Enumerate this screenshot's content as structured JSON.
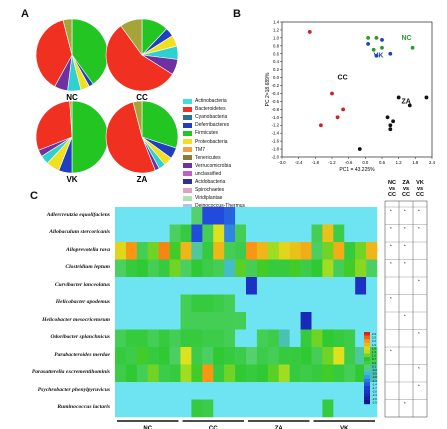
{
  "panels": {
    "a": "A",
    "b": "B",
    "c": "C"
  },
  "pies": [
    {
      "id": "NC",
      "label": "NC",
      "slices": [
        0.4,
        0.02,
        0.04,
        0.06,
        0.06,
        0.38,
        0.04
      ]
    },
    {
      "id": "CC",
      "label": "CC",
      "slices": [
        0.12,
        0.04,
        0.05,
        0.06,
        0.07,
        0.56,
        0.1
      ]
    },
    {
      "id": "VK",
      "label": "VK",
      "slices": [
        0.5,
        0.06,
        0.06,
        0.04,
        0.03,
        0.3,
        0.01
      ]
    },
    {
      "id": "ZA",
      "label": "ZA",
      "slices": [
        0.3,
        0.05,
        0.04,
        0.03,
        0.02,
        0.52,
        0.04
      ]
    }
  ],
  "pie_colors": [
    "#22c522",
    "#1f3fbf",
    "#f0e020",
    "#2fd0d0",
    "#7030a0",
    "#f03020",
    "#a4a43a"
  ],
  "legend": {
    "items": [
      {
        "label": "Actinobacteria",
        "color": "#40e0e0"
      },
      {
        "label": "Bacteroidetes",
        "color": "#f03020"
      },
      {
        "label": "Cyanobacteria",
        "color": "#2f6f8f"
      },
      {
        "label": "Deferribacteres",
        "color": "#1f3fbf"
      },
      {
        "label": "Firmicutes",
        "color": "#22c522"
      },
      {
        "label": "Proteobacteria",
        "color": "#f0e020"
      },
      {
        "label": "TM7",
        "color": "#f0a040"
      },
      {
        "label": "Tenericutes",
        "color": "#8c7a3a"
      },
      {
        "label": "Verrucomicrobia",
        "color": "#7030a0"
      },
      {
        "label": "unclassified",
        "color": "#c060c0"
      },
      {
        "label": "Acidobacteria",
        "color": "#303090"
      },
      {
        "label": "Spirochaetes",
        "color": "#e0a0c0"
      },
      {
        "label": "Viridiplantae",
        "color": "#b0e0b0"
      },
      {
        "label": "Deinococcus-Thermus",
        "color": "#b0c0f0"
      }
    ]
  },
  "chart_data": [
    {
      "type": "pie",
      "title": "",
      "categories": [
        "Firmicutes",
        "Deferribacteres",
        "Proteobacteria",
        "Actinobacteria",
        "Verrucomicrobia",
        "Bacteroidetes",
        "Tenericutes"
      ],
      "series": [
        {
          "name": "NC",
          "values": [
            0.4,
            0.02,
            0.04,
            0.06,
            0.06,
            0.38,
            0.04
          ]
        },
        {
          "name": "CC",
          "values": [
            0.12,
            0.04,
            0.05,
            0.06,
            0.07,
            0.56,
            0.1
          ]
        },
        {
          "name": "VK",
          "values": [
            0.5,
            0.06,
            0.06,
            0.04,
            0.03,
            0.3,
            0.01
          ]
        },
        {
          "name": "ZA",
          "values": [
            0.3,
            0.05,
            0.04,
            0.03,
            0.02,
            0.52,
            0.04
          ]
        }
      ]
    },
    {
      "type": "scatter",
      "xlabel": "PC1 = 43.225%",
      "ylabel": "PC 2=18.689%",
      "xlim": [
        -3.0,
        2.4
      ],
      "ylim": [
        -2.0,
        1.4
      ],
      "xticks": [
        -3.0,
        -2.4,
        -1.8,
        -1.2,
        -0.6,
        0.0,
        0.6,
        1.2,
        1.8,
        2.4
      ],
      "yticks": [
        1.4,
        1.2,
        1.0,
        0.8,
        0.6,
        0.4,
        0.2,
        0.0,
        -0.2,
        -0.4,
        -0.6,
        -0.8,
        -1.0,
        -1.2,
        -1.4,
        -1.6,
        -1.8,
        -2.0
      ],
      "xtick_labels": [
        "-3.0",
        "-2.4",
        "-1.8",
        "-1.2",
        "-0.6",
        "0.0",
        "0.6",
        "1.2",
        "1.8",
        "2.4"
      ],
      "ytick_labels": [
        "1.4",
        "1.2",
        "1.0",
        "0.8",
        "0.6",
        "0.4",
        "0.2",
        "0.0",
        "-0.2",
        "-0.4",
        "-0.6",
        "-0.8",
        "-1.0",
        "-1.2",
        "-1.4",
        "-1.6",
        "-1.8",
        "-2.0"
      ],
      "groups": [
        {
          "name": "NC",
          "color": "#2a9a2a",
          "x": [
            0.1,
            0.4,
            0.6,
            0.3,
            1.7
          ],
          "y": [
            1.0,
            1.0,
            0.75,
            0.7,
            0.75
          ]
        },
        {
          "name": "VK",
          "color": "#1f3fbf",
          "x": [
            0.1,
            0.6,
            0.9,
            0.4
          ],
          "y": [
            0.85,
            0.95,
            0.6,
            0.55
          ]
        },
        {
          "name": "CC",
          "color": "#d02020",
          "x": [
            -2.0,
            -1.2,
            -1.0,
            -1.6,
            -0.8
          ],
          "y": [
            1.15,
            -0.4,
            -1.0,
            -1.2,
            -0.8
          ]
        },
        {
          "name": "ZA",
          "color": "#111111",
          "x": [
            1.2,
            1.6,
            2.2,
            0.8,
            1.0,
            0.9,
            0.9,
            -0.2
          ],
          "y": [
            -0.5,
            -0.7,
            -0.5,
            -1.0,
            -1.1,
            -1.2,
            -1.3,
            -1.8
          ]
        }
      ],
      "group_labels": [
        {
          "text": "NC",
          "color": "#2a9a2a"
        },
        {
          "text": "VK",
          "color": "#1f3fbf"
        },
        {
          "text": "CC",
          "color": "#111111"
        },
        {
          "text": "ZA",
          "color": "#111111"
        }
      ]
    },
    {
      "type": "heatmap",
      "species": [
        "Adlercreutzia equolifaciens",
        "Allobaculum stercoricanis",
        "Alloprevotella rava",
        "Clostridium leptum",
        "Curvibacter lanceolatus",
        "Helicobacter apodemus",
        "Helicobacter mesocricetorum",
        "Odoribacter splanchnicus",
        "Parabacteroides merdae",
        "Parasutterella excrementihominis",
        "Psychrobacter phenylpyruvicus",
        "Ruminococcus lactaris"
      ],
      "groups": [
        "NC",
        "CC",
        "ZA",
        "VK"
      ],
      "columns_per_group": 6,
      "rows": [
        [
          0,
          0,
          0,
          0,
          0,
          0,
          0,
          0.1,
          -1.5,
          -1.5,
          -1.3,
          0,
          0,
          0,
          0,
          0,
          0,
          0,
          0,
          0,
          0,
          0,
          0,
          0
        ],
        [
          0,
          0,
          0,
          0,
          0,
          0.2,
          0.5,
          -1.5,
          0.3,
          1.5,
          -1,
          0.3,
          0,
          0,
          0,
          0,
          0,
          0,
          0.3,
          1.8,
          0.4,
          0,
          0,
          0
        ],
        [
          1.6,
          2.2,
          0.3,
          1.0,
          2.3,
          0.8,
          1.9,
          -0.2,
          0.5,
          1.9,
          0.3,
          0.4,
          2.2,
          1.9,
          1.2,
          1.6,
          1.8,
          2.0,
          0.2,
          1.0,
          2.0,
          0.5,
          1.0,
          1.9
        ],
        [
          0.2,
          0.5,
          0.6,
          0.3,
          0.5,
          1.0,
          0.2,
          0.6,
          0.4,
          0.3,
          -0.4,
          0.9,
          0.3,
          0.8,
          0.5,
          0.5,
          0.8,
          0.4,
          0.6,
          1.2,
          0.3,
          0.8,
          1.1,
          0.2
        ],
        [
          0,
          0,
          0,
          0,
          0,
          0,
          0,
          0,
          0,
          0,
          0,
          0,
          -2,
          0,
          0,
          0,
          0,
          0,
          0,
          0,
          0,
          0,
          -2,
          0
        ],
        [
          0,
          0,
          0,
          0,
          0,
          0,
          0.3,
          0.5,
          0.5,
          0.4,
          0.3,
          0,
          0,
          0,
          0,
          0,
          0,
          0,
          0,
          0,
          0,
          0,
          0,
          0
        ],
        [
          0,
          0,
          0,
          0,
          0,
          0,
          0.3,
          0.3,
          0.3,
          0.3,
          0.3,
          0.3,
          0,
          0,
          0,
          0,
          0,
          -2.2,
          0,
          0,
          0,
          0,
          0,
          0
        ],
        [
          0.3,
          0.5,
          0.5,
          0.3,
          0.5,
          0.3,
          0.5,
          0.5,
          0.4,
          0.4,
          0.3,
          0,
          0,
          0.3,
          0.4,
          -0.3,
          0,
          0.5,
          1.0,
          0.6,
          0.5,
          0.4,
          0,
          0
        ],
        [
          0.5,
          0.4,
          0.8,
          0.5,
          0.6,
          0.2,
          1.5,
          0.4,
          0.2,
          0.6,
          0.5,
          0.4,
          0.1,
          0.4,
          0.3,
          0.5,
          0.5,
          0.6,
          0.3,
          1.0,
          1.5,
          0.4,
          -0.2,
          0.3
        ],
        [
          0.4,
          0.6,
          0.3,
          1.0,
          0.4,
          0.5,
          1.2,
          0.8,
          2.2,
          0.5,
          1.0,
          0.6,
          0.5,
          0.6,
          0.9,
          1.2,
          0.5,
          0.4,
          0.5,
          0.8,
          0.5,
          0.3,
          0.6,
          -0.3
        ],
        [
          0,
          0,
          0,
          0,
          0,
          0,
          0,
          0,
          0,
          0,
          0,
          0,
          0,
          0,
          0,
          0,
          0,
          0,
          0,
          0,
          0,
          0,
          0,
          0
        ],
        [
          0,
          0,
          0,
          0,
          0,
          0,
          0,
          0.5,
          0.4,
          0,
          0,
          0,
          0,
          0,
          0,
          0,
          0,
          0,
          0,
          0.5,
          0,
          0,
          0,
          0
        ]
      ],
      "color_scale": {
        "min": -2.9,
        "max": 2.9
      },
      "scale_ticks": [
        "2.9",
        "2.5",
        "2.2",
        "1.9",
        "1.6",
        "1.3",
        "1.0",
        "0.7",
        "0.4",
        "0.1",
        "-0.2",
        "-0.5",
        "-0.8",
        "-1.1",
        "-1.4",
        "-1.7",
        "-2.0",
        "-2.3",
        "-2.6",
        "-2.9"
      ],
      "comparisons": {
        "headers": [
          [
            "NC",
            "vs",
            "CC"
          ],
          [
            "ZA",
            "vs",
            "CC"
          ],
          [
            "VK",
            "vs",
            "CC"
          ]
        ],
        "marks": [
          [
            "*",
            "*",
            "*"
          ],
          [
            "*",
            "*",
            "*"
          ],
          [
            "*",
            "*",
            ""
          ],
          [
            "*",
            "*",
            ""
          ],
          [
            "",
            "",
            "*"
          ],
          [
            "*",
            "",
            ""
          ],
          [
            "",
            "*",
            ""
          ],
          [
            "",
            "",
            "*"
          ],
          [
            "*",
            "",
            ""
          ],
          [
            "",
            "",
            "*"
          ],
          [
            "",
            "",
            "*"
          ],
          [
            "",
            "*",
            ""
          ]
        ]
      }
    }
  ]
}
